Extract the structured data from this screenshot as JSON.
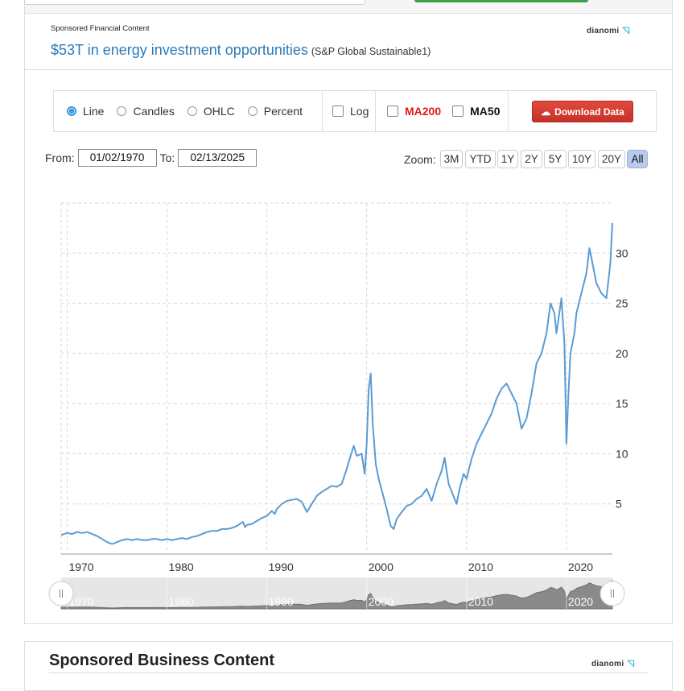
{
  "ad": {
    "label": "Sponsored Financial Content",
    "brand": "dianomi",
    "headline": "$53T in energy investment opportunities",
    "source": "(S&P Global Sustainable1)"
  },
  "controls": {
    "chart_types": [
      "Line",
      "Candles",
      "OHLC",
      "Percent"
    ],
    "selected_type": "Line",
    "log_label": "Log",
    "ma200_label": "MA200",
    "ma50_label": "MA50",
    "download_label": "Download Data"
  },
  "range": {
    "from_label": "From:",
    "from_value": "01/02/1970",
    "to_label": "To:",
    "to_value": "02/13/2025"
  },
  "zoom": {
    "label": "Zoom:",
    "buttons": [
      "3M",
      "YTD",
      "1Y",
      "2Y",
      "5Y",
      "10Y",
      "20Y",
      "All"
    ],
    "active": "All"
  },
  "chart_data": {
    "type": "line",
    "title": "",
    "xlabel": "",
    "ylabel": "",
    "x_ticks": [
      "1970",
      "1980",
      "1990",
      "2000",
      "2010",
      "2020"
    ],
    "y_ticks": [
      5,
      10,
      15,
      20,
      25,
      30
    ],
    "xlim": [
      1969.4,
      2024.6
    ],
    "ylim": [
      0,
      35
    ],
    "grid": true,
    "series": [
      {
        "color": "#5b9bd5",
        "x": [
          1969.4,
          1970.0,
          1970.5,
          1971.0,
          1971.5,
          1972.0,
          1972.5,
          1973.0,
          1973.5,
          1974.0,
          1974.5,
          1975.0,
          1975.5,
          1976.0,
          1976.5,
          1977.0,
          1977.5,
          1978.0,
          1978.5,
          1979.0,
          1979.5,
          1980.0,
          1980.5,
          1981.0,
          1981.5,
          1982.0,
          1982.5,
          1983.0,
          1983.5,
          1984.0,
          1984.5,
          1985.0,
          1985.5,
          1986.0,
          1986.5,
          1987.0,
          1987.6,
          1987.8,
          1988.0,
          1988.5,
          1989.0,
          1989.5,
          1990.0,
          1990.5,
          1990.8,
          1991.0,
          1991.5,
          1992.0,
          1992.5,
          1993.0,
          1993.5,
          1994.0,
          1994.5,
          1995.0,
          1995.5,
          1996.0,
          1996.5,
          1997.0,
          1997.5,
          1998.0,
          1998.3,
          1998.7,
          1999.0,
          1999.5,
          1999.8,
          2000.0,
          2000.2,
          2000.4,
          2000.6,
          2000.9,
          2001.2,
          2001.6,
          2002.0,
          2002.4,
          2002.7,
          2003.0,
          2003.5,
          2004.0,
          2004.5,
          2005.0,
          2005.5,
          2006.0,
          2006.5,
          2007.0,
          2007.5,
          2007.8,
          2008.2,
          2008.6,
          2009.0,
          2009.3,
          2009.7,
          2010.0,
          2010.5,
          2011.0,
          2011.5,
          2012.0,
          2012.5,
          2013.0,
          2013.5,
          2014.0,
          2014.5,
          2015.0,
          2015.5,
          2016.0,
          2016.5,
          2017.0,
          2017.5,
          2018.0,
          2018.4,
          2018.8,
          2019.0,
          2019.5,
          2019.8,
          2020.0,
          2020.2,
          2020.4,
          2020.8,
          2021.0,
          2021.5,
          2022.0,
          2022.3,
          2022.8,
          2023.0,
          2023.5,
          2024.0,
          2024.4,
          2024.6
        ],
        "y": [
          1.9,
          2.1,
          2.0,
          2.2,
          2.1,
          2.2,
          2.0,
          1.8,
          1.5,
          1.2,
          1.0,
          1.2,
          1.4,
          1.5,
          1.4,
          1.5,
          1.4,
          1.4,
          1.5,
          1.5,
          1.4,
          1.5,
          1.4,
          1.5,
          1.6,
          1.5,
          1.7,
          1.8,
          2.0,
          2.2,
          2.3,
          2.3,
          2.5,
          2.5,
          2.6,
          2.8,
          3.2,
          2.7,
          2.9,
          3.0,
          3.3,
          3.6,
          3.8,
          4.3,
          4.0,
          4.5,
          5.0,
          5.3,
          5.4,
          5.5,
          5.2,
          4.2,
          5.0,
          5.8,
          6.2,
          6.5,
          6.8,
          6.7,
          7.0,
          8.5,
          9.5,
          10.8,
          9.8,
          10.0,
          8.0,
          11.0,
          16.5,
          18.0,
          13.0,
          9.0,
          7.5,
          6.0,
          4.5,
          2.8,
          2.5,
          3.5,
          4.2,
          4.8,
          5.0,
          5.5,
          5.8,
          6.5,
          5.3,
          7.0,
          8.3,
          9.6,
          7.0,
          6.0,
          5.0,
          6.5,
          8.0,
          7.5,
          9.5,
          11.0,
          12.0,
          13.0,
          14.0,
          15.5,
          16.5,
          17.0,
          16.0,
          15.0,
          12.5,
          13.5,
          16.0,
          19.0,
          20.0,
          22.0,
          25.0,
          24.0,
          22.0,
          25.5,
          21.0,
          11.0,
          16.0,
          20.0,
          22.0,
          24.0,
          26.0,
          28.0,
          30.5,
          28.0,
          27.0,
          26.0,
          25.5,
          29.0,
          33.0
        ]
      }
    ],
    "navigator_ticks": [
      "1970",
      "1980",
      "1990",
      "2000",
      "2010",
      "2020"
    ]
  },
  "sponsored_business": {
    "title": "Sponsored Business Content",
    "brand": "dianomi"
  }
}
